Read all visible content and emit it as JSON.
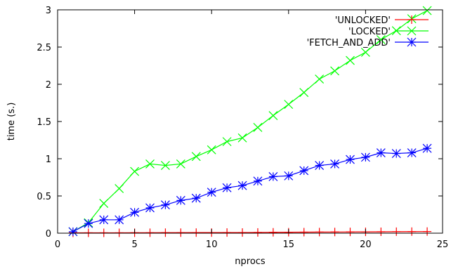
{
  "chart_data": {
    "type": "line",
    "title": "",
    "xlabel": "nprocs",
    "ylabel": "time (s.)",
    "xlim": [
      0,
      25
    ],
    "ylim": [
      0,
      3
    ],
    "x_ticks": [
      0,
      5,
      10,
      15,
      20,
      25
    ],
    "y_ticks": [
      0,
      0.5,
      1,
      1.5,
      2,
      2.5,
      3
    ],
    "x_tick_labels": [
      "0",
      "5",
      "10",
      "15",
      "20",
      "25"
    ],
    "y_tick_labels": [
      "0",
      "0.5",
      "1",
      "1.5",
      "2",
      "2.5",
      "3"
    ],
    "grid": false,
    "legend_position": "top-right",
    "x": [
      1,
      2,
      3,
      4,
      5,
      6,
      7,
      8,
      9,
      10,
      11,
      12,
      13,
      14,
      15,
      16,
      17,
      18,
      19,
      20,
      21,
      22,
      23,
      24
    ],
    "series": [
      {
        "name": "'UNLOCKED'",
        "color": "#ff0000",
        "marker": "plus",
        "values": [
          0.005,
          0.005,
          0.005,
          0.005,
          0.006,
          0.006,
          0.007,
          0.007,
          0.008,
          0.008,
          0.009,
          0.009,
          0.01,
          0.012,
          0.013,
          0.014,
          0.015,
          0.016,
          0.017,
          0.018,
          0.019,
          0.02,
          0.021,
          0.022
        ]
      },
      {
        "name": "'LOCKED'",
        "color": "#00ff00",
        "marker": "x",
        "values": [
          0.02,
          0.14,
          0.4,
          0.6,
          0.83,
          0.93,
          0.91,
          0.93,
          1.03,
          1.12,
          1.23,
          1.28,
          1.42,
          1.58,
          1.73,
          1.89,
          2.07,
          2.18,
          2.32,
          2.43,
          2.6,
          2.72,
          2.88,
          2.99
        ]
      },
      {
        "name": "'FETCH_AND_ADD'",
        "color": "#0000ff",
        "marker": "star",
        "values": [
          0.02,
          0.13,
          0.18,
          0.18,
          0.28,
          0.34,
          0.38,
          0.44,
          0.47,
          0.55,
          0.61,
          0.64,
          0.7,
          0.76,
          0.77,
          0.84,
          0.91,
          0.93,
          0.99,
          1.02,
          1.08,
          1.07,
          1.08,
          1.14
        ]
      }
    ]
  }
}
